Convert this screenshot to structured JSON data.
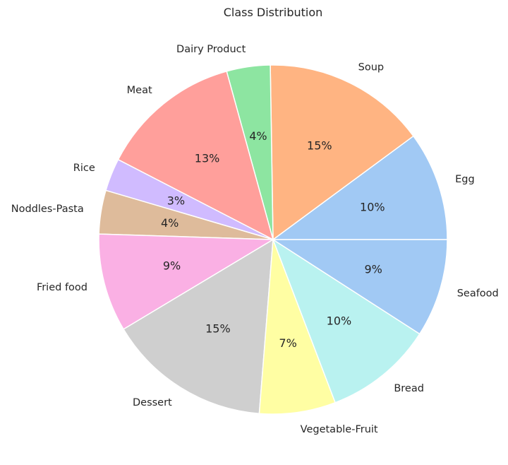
{
  "chart_data": {
    "type": "pie",
    "title": "Class Distribution",
    "start_angle_deg": 0,
    "direction": "counterclockwise",
    "legend": "none",
    "slices": [
      {
        "label": "Egg",
        "value": 10,
        "pct_label": "10%",
        "color": "#a1c9f4"
      },
      {
        "label": "Soup",
        "value": 15,
        "pct_label": "15%",
        "color": "#ffb482"
      },
      {
        "label": "Dairy Product",
        "value": 4,
        "pct_label": "4%",
        "color": "#8de5a1"
      },
      {
        "label": "Meat",
        "value": 13,
        "pct_label": "13%",
        "color": "#ff9f9b"
      },
      {
        "label": "Rice",
        "value": 3,
        "pct_label": "3%",
        "color": "#d0bbff"
      },
      {
        "label": "Noddles-Pasta",
        "value": 4,
        "pct_label": "4%",
        "color": "#debb9b"
      },
      {
        "label": "Fried food",
        "value": 9,
        "pct_label": "9%",
        "color": "#fab0e4"
      },
      {
        "label": "Dessert",
        "value": 15,
        "pct_label": "15%",
        "color": "#cfcfcf"
      },
      {
        "label": "Vegetable-Fruit",
        "value": 7,
        "pct_label": "7%",
        "color": "#fffea3"
      },
      {
        "label": "Bread",
        "value": 10,
        "pct_label": "10%",
        "color": "#b9f2f0"
      },
      {
        "label": "Seafood",
        "value": 9,
        "pct_label": "9%",
        "color": "#a1c9f4"
      }
    ]
  }
}
